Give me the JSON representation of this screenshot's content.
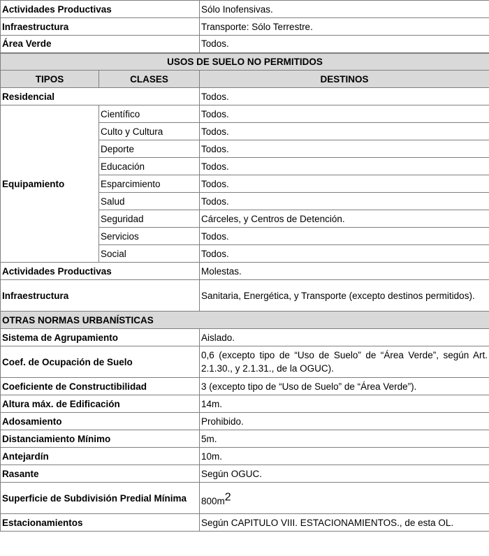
{
  "permitted_tail": [
    {
      "tipo": "Actividades Productivas",
      "destino": "Sólo Inofensivas."
    },
    {
      "tipo": "Infraestructura",
      "destino": "Transporte: Sólo Terrestre."
    },
    {
      "tipo": "Área Verde",
      "destino": "Todos."
    }
  ],
  "not_permitted": {
    "title": "USOS DE SUELO NO PERMITIDOS",
    "headers": {
      "tipos": "TIPOS",
      "clases": "CLASES",
      "destinos": "DESTINOS"
    },
    "residencial": {
      "tipo": "Residencial",
      "destino": "Todos."
    },
    "equipamiento": {
      "tipo": "Equipamiento",
      "clases": [
        {
          "clase": "Científico",
          "destino": "Todos."
        },
        {
          "clase": "Culto y Cultura",
          "destino": "Todos."
        },
        {
          "clase": "Deporte",
          "destino": "Todos."
        },
        {
          "clase": "Educación",
          "destino": "Todos."
        },
        {
          "clase": "Esparcimiento",
          "destino": "Todos."
        },
        {
          "clase": "Salud",
          "destino": "Todos."
        },
        {
          "clase": "Seguridad",
          "destino": "Cárceles, y Centros de Detención."
        },
        {
          "clase": "Servicios",
          "destino": "Todos."
        },
        {
          "clase": "Social",
          "destino": "Todos."
        }
      ]
    },
    "actividades": {
      "tipo": "Actividades Productivas",
      "destino": "Molestas."
    },
    "infraestructura": {
      "tipo": "Infraestructura",
      "destino": "Sanitaria, Energética, y Transporte (excepto destinos permitidos)."
    }
  },
  "otras_normas": {
    "title": "OTRAS NORMAS URBANÍSTICAS",
    "rows": [
      {
        "label": "Sistema de Agrupamiento",
        "value": "Aislado."
      },
      {
        "label": "Coef. de Ocupación de Suelo",
        "value": "0,6 (excepto tipo de “Uso de Suelo” de “Área Verde”, según Art. 2.1.30., y 2.1.31., de la OGUC)."
      },
      {
        "label": "Coeficiente de Constructibilidad",
        "value": "3 (excepto tipo de “Uso de Suelo” de “Área Verde”)."
      },
      {
        "label": "Altura máx. de Edificación",
        "value": "14m."
      },
      {
        "label": "Adosamiento",
        "value": "Prohibido."
      },
      {
        "label": "Distanciamiento Mínimo",
        "value": "5m."
      },
      {
        "label": "Antejardín",
        "value": "10m."
      },
      {
        "label": "Rasante",
        "value": "Según OGUC."
      },
      {
        "label": "Superficie de Subdivisión Predial Mínima",
        "value": "800m",
        "value_sup": "2"
      },
      {
        "label": "Estacionamientos",
        "value": "Según CAPITULO VIII. ESTACIONAMIENTOS., de esta OL."
      }
    ]
  }
}
